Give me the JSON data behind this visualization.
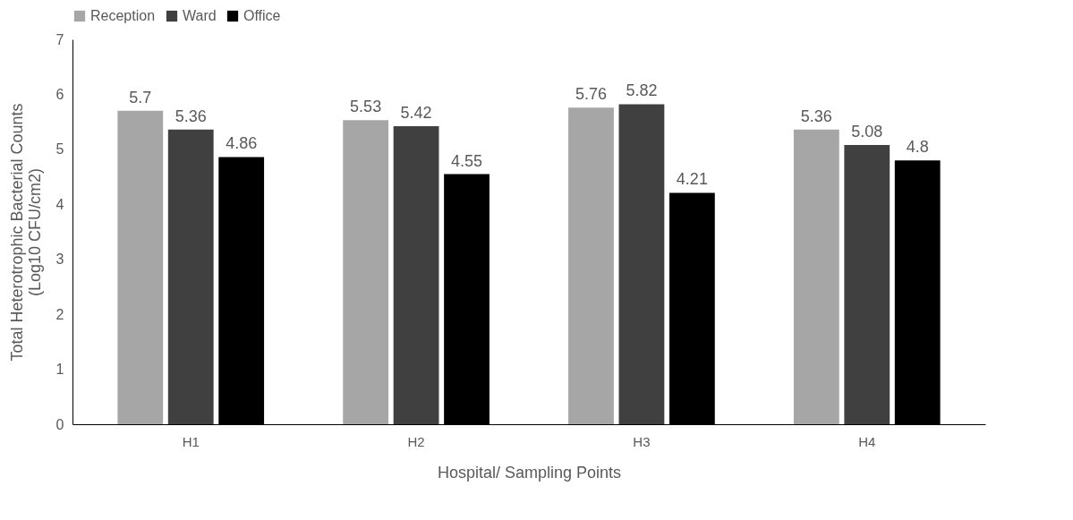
{
  "chart_data": {
    "type": "bar",
    "xlabel": "Hospital/ Sampling Points",
    "ylabel": "Total Heterotrophic Bacterial Counts\n(Log10 CFU/cm2)",
    "categories": [
      "H1",
      "H2",
      "H3",
      "H4"
    ],
    "series": [
      {
        "name": "Reception",
        "color": "#a6a6a6",
        "values": [
          5.7,
          5.53,
          5.76,
          5.36
        ]
      },
      {
        "name": "Ward",
        "color": "#404040",
        "values": [
          5.36,
          5.42,
          5.82,
          5.08
        ]
      },
      {
        "name": "Office",
        "color": "#000000",
        "values": [
          4.86,
          4.55,
          4.21,
          4.8
        ]
      }
    ],
    "ylim": [
      0,
      7
    ],
    "yticks": [
      0,
      1,
      2,
      3,
      4,
      5,
      6,
      7
    ],
    "grid": false,
    "legend": "top",
    "data_labels": true
  }
}
